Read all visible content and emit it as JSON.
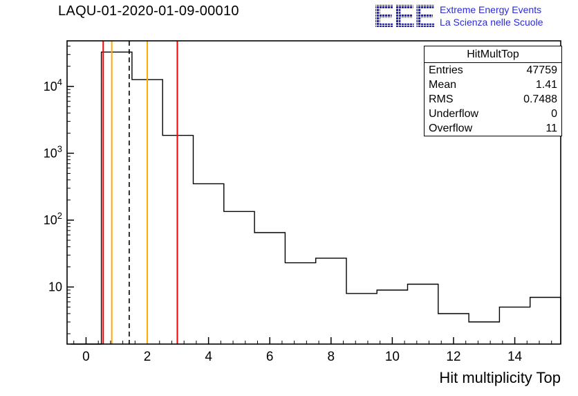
{
  "page": {
    "background": "#ffffff"
  },
  "header": {
    "title": "LAQU-01-2020-01-09-00010",
    "logo": {
      "text": "EEE",
      "line1": "Extreme Energy Events",
      "line2": "La Scienza nelle Scuole",
      "color": "#2222cc"
    }
  },
  "stats": {
    "title": "HitMultTop",
    "rows": [
      {
        "label": "Entries",
        "value": "47759"
      },
      {
        "label": "Mean",
        "value": "1.41"
      },
      {
        "label": "RMS",
        "value": "0.7488"
      },
      {
        "label": "Underflow",
        "value": "0"
      },
      {
        "label": "Overflow",
        "value": "11"
      }
    ]
  },
  "chart_data": {
    "type": "bar",
    "subtype": "step-histogram",
    "title": "LAQU-01-2020-01-09-00010",
    "xlabel": "Hit multiplicity Top",
    "ylabel": "",
    "yscale": "log",
    "xlim": [
      -0.62,
      15.5
    ],
    "ylim": [
      1.4,
      48000
    ],
    "bin_width": 1,
    "x_bin_centers": [
      0,
      1,
      2,
      3,
      4,
      5,
      6,
      7,
      8,
      9,
      10,
      11,
      12,
      13,
      14,
      15
    ],
    "counts": [
      0,
      32600,
      12650,
      1850,
      350,
      135,
      65,
      23,
      27,
      8,
      9,
      11,
      4,
      3,
      5,
      7
    ],
    "xticks_major": [
      0,
      2,
      4,
      6,
      8,
      10,
      12,
      14
    ],
    "xtick_labels": [
      "0",
      "2",
      "4",
      "6",
      "8",
      "10",
      "12",
      "14"
    ],
    "yticks_major": [
      10,
      100,
      1000,
      10000
    ],
    "ytick_labels": [
      "10",
      "10^2",
      "10^3",
      "10^4"
    ],
    "line_color": "#000000",
    "grid": false,
    "legend": "none",
    "marker_lines": [
      {
        "x": 0.56,
        "color": "#ff0000",
        "style": "solid"
      },
      {
        "x": 0.84,
        "color": "#ffaa00",
        "style": "solid"
      },
      {
        "x": 1.41,
        "color": "#000000",
        "style": "dashed"
      },
      {
        "x": 2.0,
        "color": "#ffaa00",
        "style": "solid"
      },
      {
        "x": 2.98,
        "color": "#ff0000",
        "style": "solid"
      }
    ]
  }
}
